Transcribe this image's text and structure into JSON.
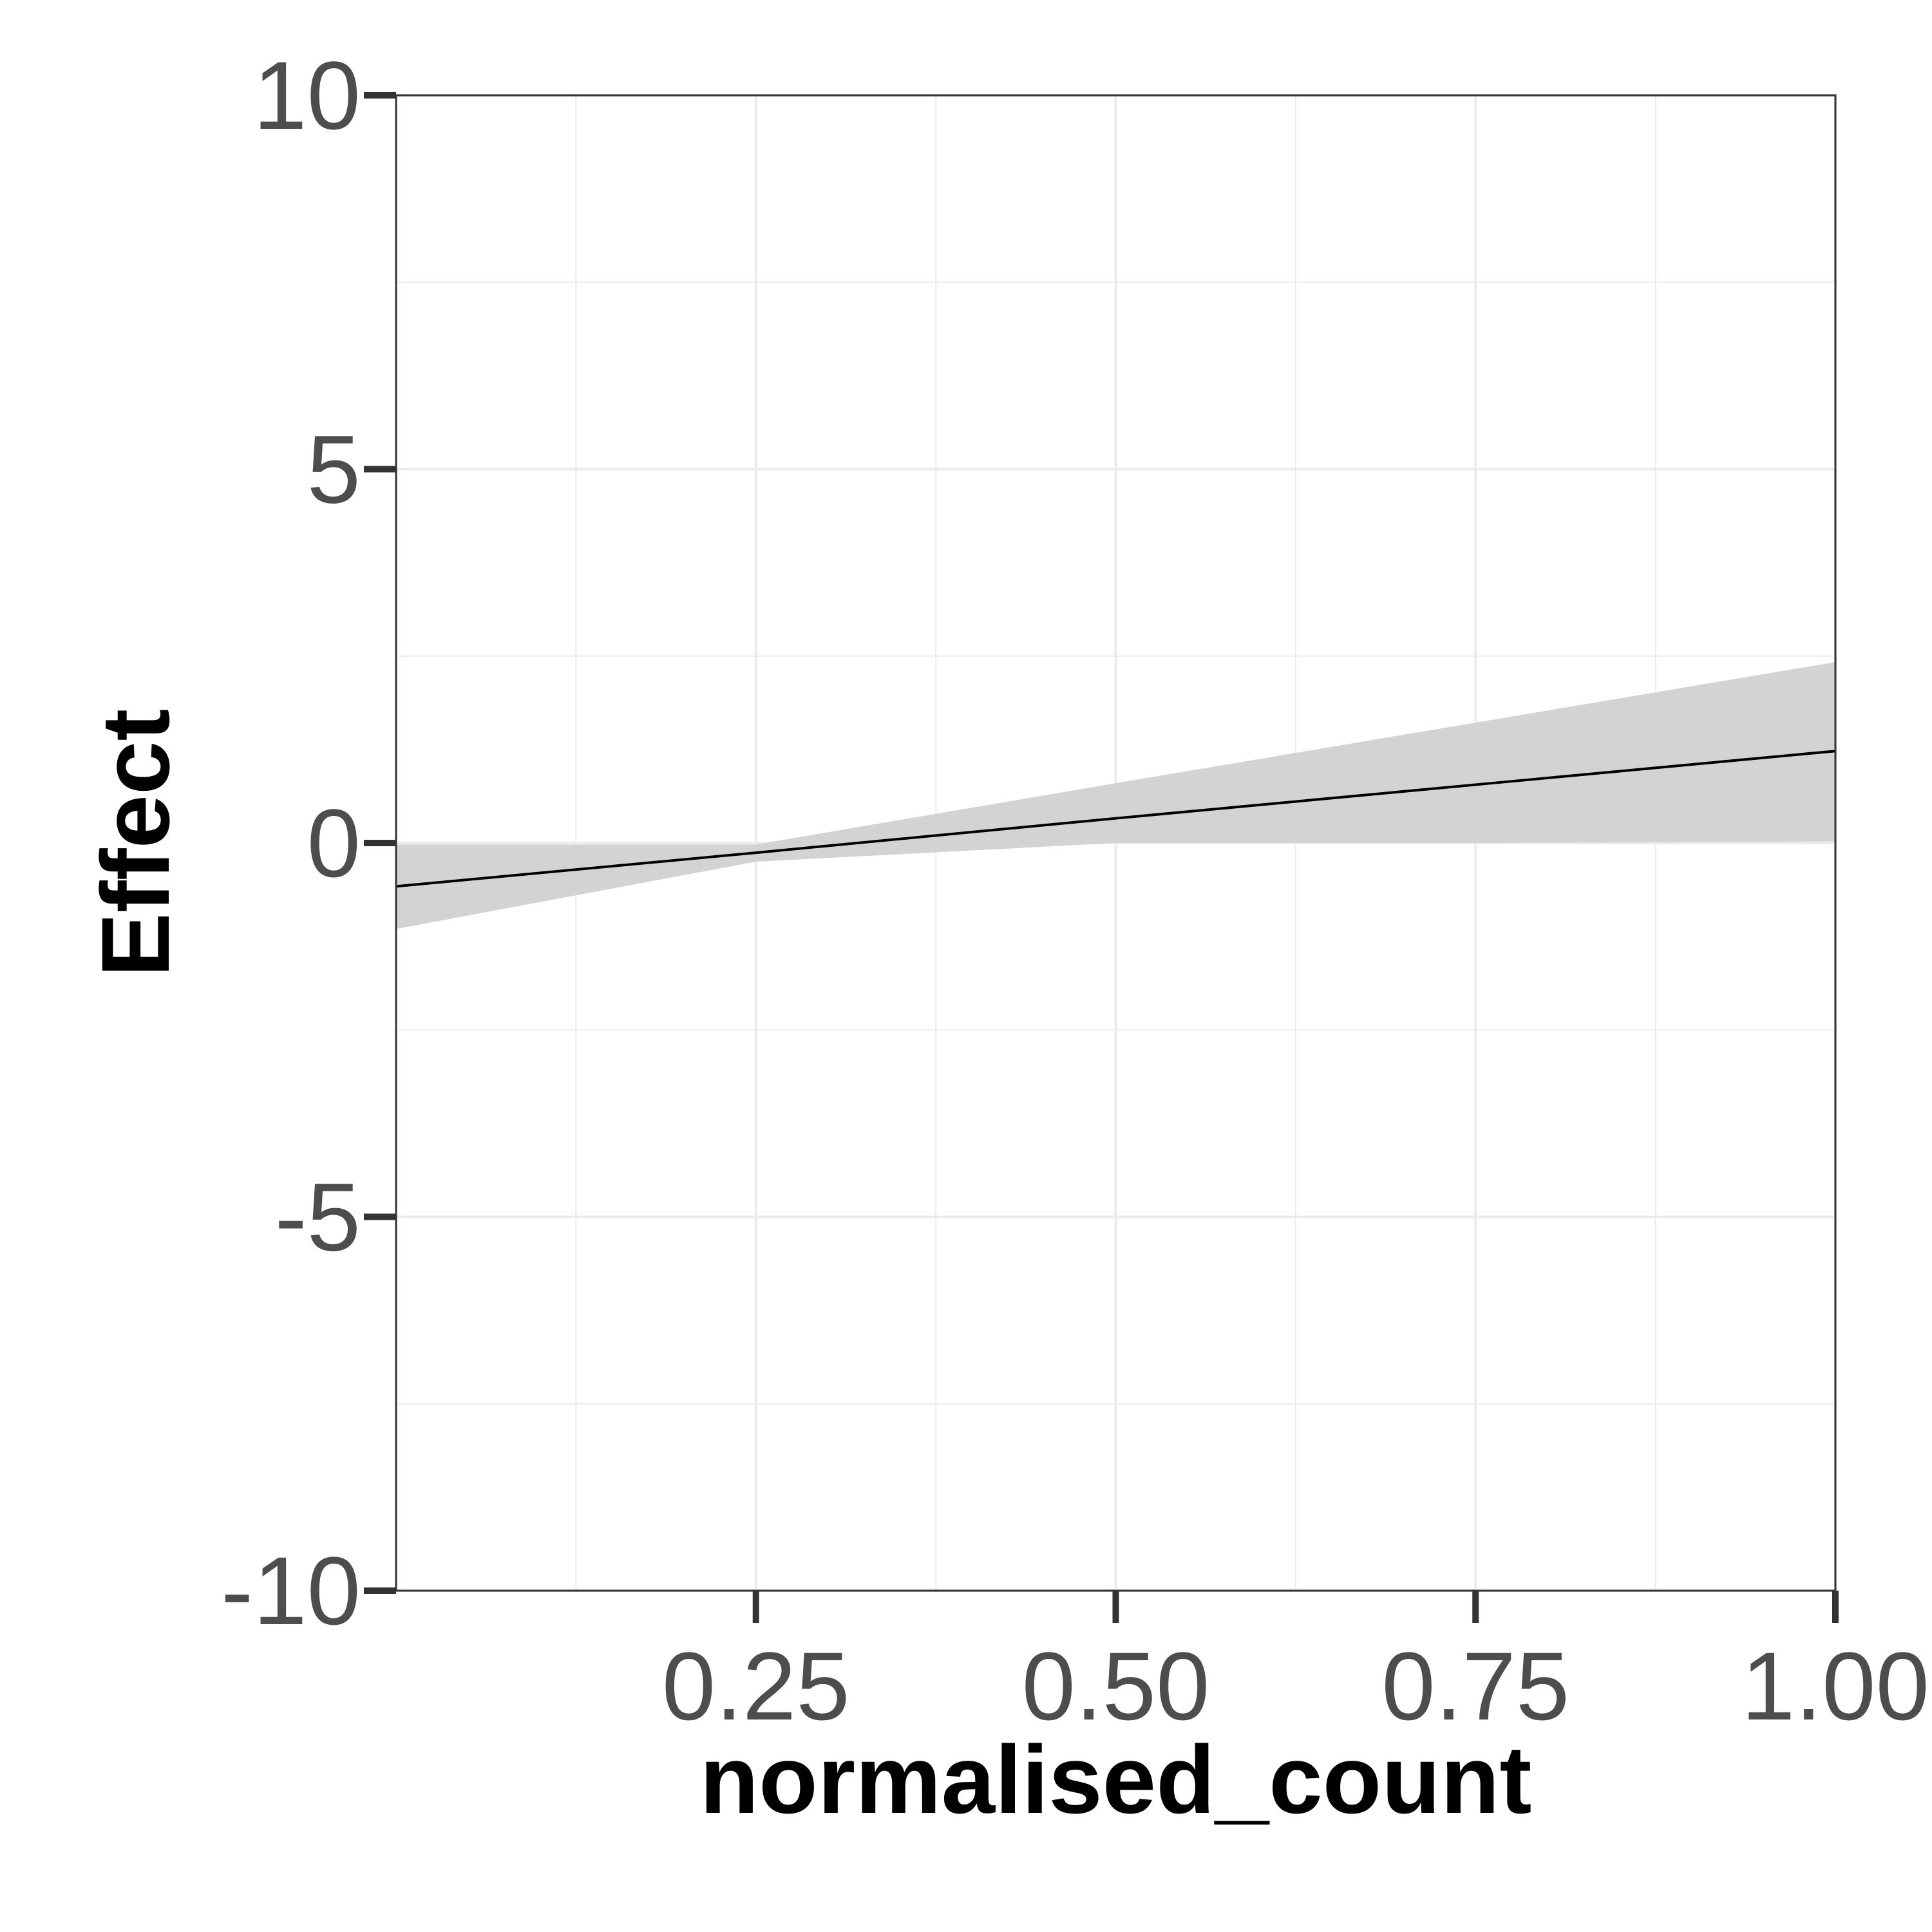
{
  "chart_data": {
    "type": "line",
    "title": "",
    "xlabel": "normalised_count",
    "ylabel": "Effect",
    "xlim": [
      0.0,
      1.0
    ],
    "ylim": [
      -10,
      10
    ],
    "x_ticks": [
      0.25,
      0.5,
      0.75,
      1.0
    ],
    "x_tick_labels": [
      "0.25",
      "0.50",
      "0.75",
      "1.00"
    ],
    "y_ticks": [
      -10,
      -5,
      0,
      5,
      10
    ],
    "y_tick_labels": [
      "-10",
      "-5",
      "0",
      "5",
      "10"
    ],
    "grid": true,
    "legend": "none",
    "series": [
      {
        "x": [
          0.0,
          0.25,
          0.5,
          0.75,
          1.0
        ],
        "y": [
          -0.58,
          -0.13,
          0.33,
          0.78,
          1.23
        ]
      }
    ],
    "ribbon": {
      "x": [
        0.0,
        0.25,
        0.5,
        0.75,
        1.0
      ],
      "lower": [
        -1.15,
        -0.25,
        0.0,
        0.0,
        0.02
      ],
      "upper": [
        -0.02,
        -0.02,
        0.8,
        1.61,
        2.42
      ]
    },
    "colors": {
      "line": "#000000",
      "ribbon": "#d3d3d3",
      "grid": "#ebebeb",
      "panel_border": "#333333",
      "tick_mark": "#333333"
    }
  }
}
